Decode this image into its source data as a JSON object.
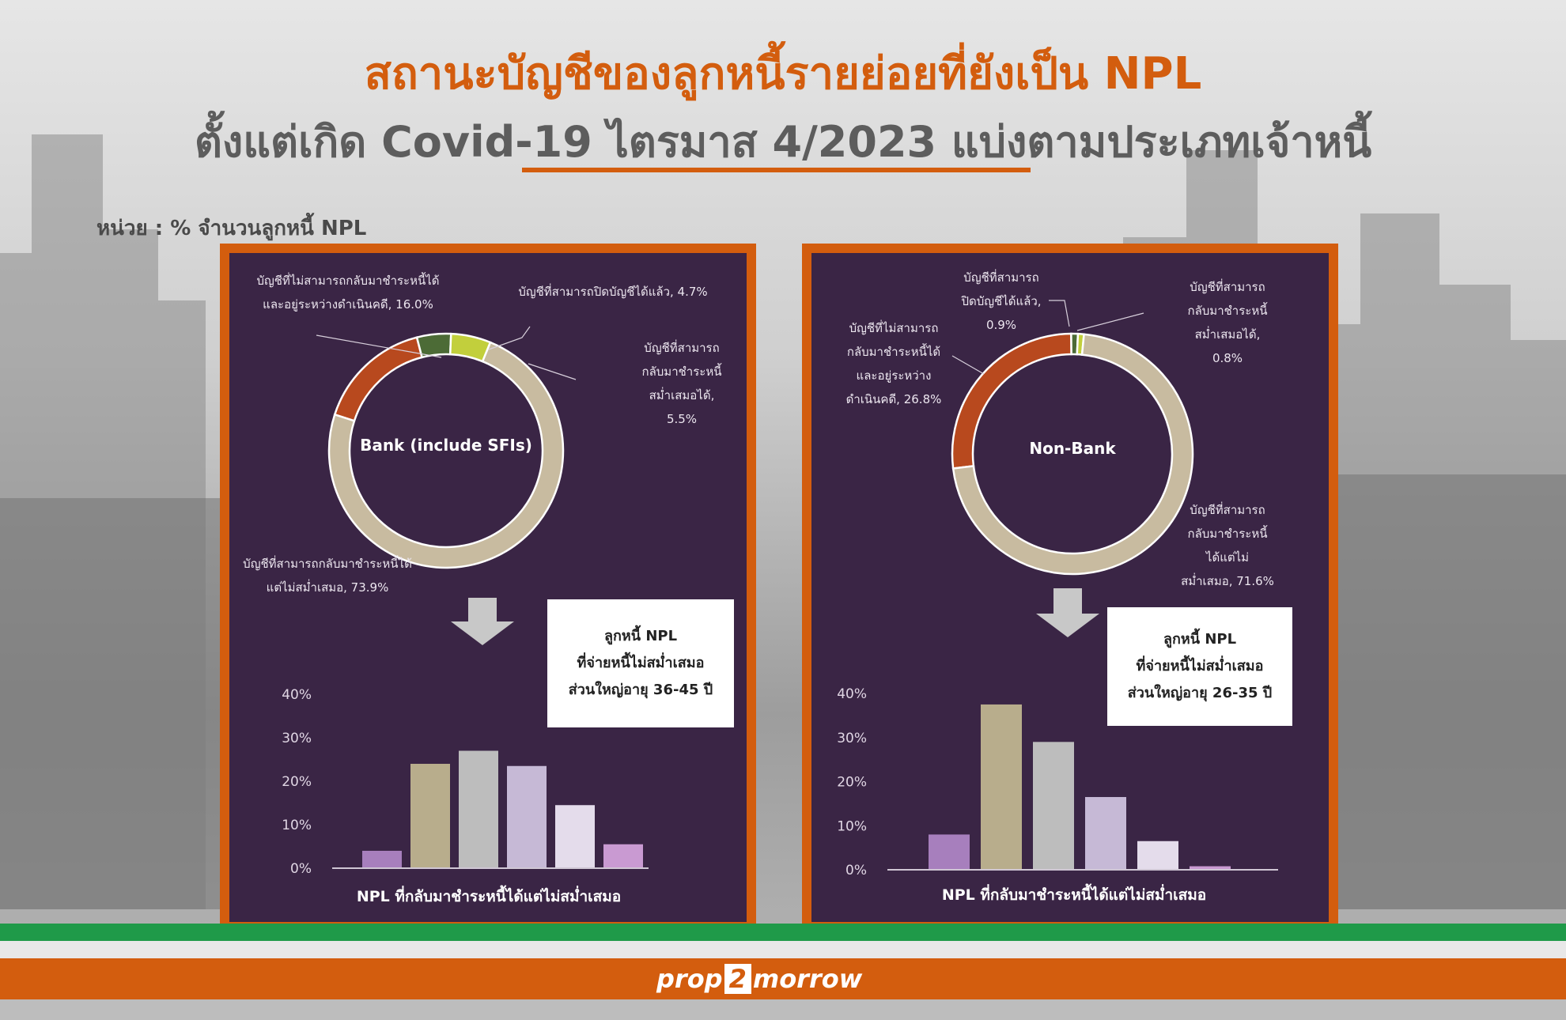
{
  "title": {
    "line1": "สถานะบัญชีของลูกหนี้รายย่อยที่ยังเป็น NPL",
    "line2": "ตั้งแต่เกิด Covid-19 ไตรมาส 4/2023 แบ่งตามประเภทเจ้าหนี้"
  },
  "unit_label": "หน่วย :  % จำนวนลูกหนี้ NPL",
  "colors": {
    "brand_orange": "#d35d0e",
    "panel_bg": "#3a2545",
    "accent_green": "#1f9a49"
  },
  "chart_data": [
    {
      "type": "pie",
      "title": "Bank (include SFIs)",
      "slices": [
        {
          "label": "บัญชีที่สามารถกลับมาชำระหนี้ได้แต่ไม่สม่ำเสมอ, 73.9%",
          "value": 73.9,
          "color": "#c8bba0"
        },
        {
          "label": "บัญชีที่ไม่สามารถกลับมาชำระหนี้ได้และอยู่ระหว่างดำเนินคดี, 16.0%",
          "value": 16.0,
          "color": "#b8491e"
        },
        {
          "label": "บัญชีที่สามารถปิดบัญชีได้แล้ว, 4.7%",
          "value": 4.7,
          "color": "#4c6b36"
        },
        {
          "label": "บัญชีที่สามารถกลับมาชำระหนี้สม่ำเสมอได้, 5.5%",
          "value": 5.5,
          "color": "#c2cf3c"
        }
      ]
    },
    {
      "type": "bar",
      "title": "ลูกหนี้ NPL ที่จ่ายหนี้ไม่สม่ำเสมอ ส่วนใหญ่อายุ 36-45 ปี",
      "xlabel": "NPL ที่กลับมาชำระหนี้ได้แต่ไม่สม่ำเสมอ",
      "ylim": [
        0,
        40
      ],
      "yticks": [
        "40%",
        "30%",
        "20%",
        "10%",
        "0%"
      ],
      "values": [
        4,
        24,
        27,
        23.5,
        14.5,
        5.5
      ],
      "colors": [
        "#a77fbd",
        "#b8ad8c",
        "#bdbdbd",
        "#c6b9d6",
        "#e4dceb",
        "#c99ad2"
      ]
    },
    {
      "type": "pie",
      "title": "Non-Bank",
      "slices": [
        {
          "label": "บัญชีที่สามารถกลับมาชำระหนี้ได้แต่ไม่สม่ำเสมอ, 71.6%",
          "value": 71.6,
          "color": "#c8bba0"
        },
        {
          "label": "บัญชีที่ไม่สามารถกลับมาชำระหนี้ได้และอยู่ระหว่างดำเนินคดี, 26.8%",
          "value": 26.8,
          "color": "#b8491e"
        },
        {
          "label": "บัญชีที่สามารถปิดบัญชีได้แล้ว, 0.9%",
          "value": 0.9,
          "color": "#4c6b36"
        },
        {
          "label": "บัญชีที่สามารถกลับมาชำระหนี้สม่ำเสมอได้, 0.8%",
          "value": 0.8,
          "color": "#c2cf3c"
        }
      ]
    },
    {
      "type": "bar",
      "title": "ลูกหนี้ NPL ที่จ่ายหนี้ไม่สม่ำเสมอ ส่วนใหญ่อายุ 26-35 ปี",
      "xlabel": "NPL ที่กลับมาชำระหนี้ได้แต่ไม่สม่ำเสมอ",
      "ylim": [
        0,
        40
      ],
      "yticks": [
        "40%",
        "30%",
        "20%",
        "10%",
        "0%"
      ],
      "values": [
        8,
        37.5,
        29,
        16.5,
        6.5,
        0.8
      ],
      "colors": [
        "#a77fbd",
        "#b8ad8c",
        "#bdbdbd",
        "#c6b9d6",
        "#e4dceb",
        "#c99ad2"
      ]
    }
  ],
  "panels": [
    {
      "center_label": "Bank (include SFIs)",
      "labels": {
        "lawsuit": [
          "บัญชีที่ไม่สามารถกลับมาชำระหนี้ได้",
          "และอยู่ระหว่างดำเนินคดี, 16.0%"
        ],
        "closed": [
          "บัญชีที่สามารถปิดบัญชีได้แล้ว, 4.7%"
        ],
        "regular": [
          "บัญชีที่สามารถ",
          "กลับมาชำระหนี้",
          "สม่ำเสมอได้,",
          "5.5%"
        ],
        "irregular": [
          "บัญชีที่สามารถกลับมาชำระหนี้ได้",
          "แต่ไม่สม่ำเสมอ, 73.9%"
        ]
      },
      "note": [
        "ลูกหนี้ NPL",
        "ที่จ่ายหนี้ไม่สม่ำเสมอ",
        "ส่วนใหญ่อายุ 36-45 ปี"
      ],
      "xlabel": "NPL ที่กลับมาชำระหนี้ได้แต่ไม่สม่ำเสมอ"
    },
    {
      "center_label": "Non-Bank",
      "labels": {
        "lawsuit": [
          "บัญชีที่ไม่สามารถ",
          "กลับมาชำระหนี้ได้",
          "และอยู่ระหว่าง",
          "ดำเนินคดี, 26.8%"
        ],
        "closed": [
          "บัญชีที่สามารถ",
          "ปิดบัญชีได้แล้ว,",
          "0.9%"
        ],
        "regular": [
          "บัญชีที่สามารถ",
          "กลับมาชำระหนี้",
          "สม่ำเสมอได้,",
          "0.8%"
        ],
        "irregular": [
          "บัญชีที่สามารถ",
          "กลับมาชำระหนี้",
          "ได้แต่ไม่",
          "สม่ำเสมอ, 71.6%"
        ]
      },
      "note": [
        "ลูกหนี้ NPL",
        "ที่จ่ายหนี้ไม่สม่ำเสมอ",
        "ส่วนใหญ่อายุ 26-35 ปี"
      ],
      "xlabel": "NPL ที่กลับมาชำระหนี้ได้แต่ไม่สม่ำเสมอ"
    }
  ],
  "footer": {
    "logo_left": "prop",
    "logo_mid": "2",
    "logo_right": "morrow"
  }
}
